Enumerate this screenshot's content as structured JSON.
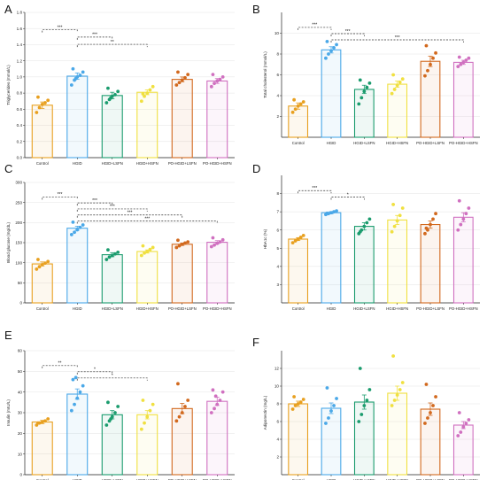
{
  "figure": {
    "panels": [
      "A",
      "B",
      "C",
      "D",
      "E",
      "F"
    ]
  },
  "chart_data": [
    {
      "panel": "A",
      "type": "bar",
      "ylabel": "Triglycerides (mmol/L)",
      "ylim": [
        0,
        1.8
      ],
      "yticks": [
        0.0,
        0.2,
        0.4,
        0.6,
        0.8,
        1.0,
        1.2,
        1.4,
        1.6,
        1.8
      ],
      "tick_decimals": 1,
      "categories": [
        "Control",
        "HGID",
        "HGID+LSFN",
        "HGID+HSFN",
        "PO-HGID+LSFN",
        "PO-HGID+HSFN"
      ],
      "values": [
        0.65,
        1.01,
        0.77,
        0.81,
        0.97,
        0.95
      ],
      "errors": [
        0.04,
        0.04,
        0.04,
        0.03,
        0.03,
        0.03
      ],
      "points": [
        [
          0.56,
          0.62,
          0.66,
          0.68,
          0.71,
          0.75
        ],
        [
          0.9,
          0.96,
          1.0,
          1.02,
          1.06,
          1.1,
          0.98
        ],
        [
          0.68,
          0.72,
          0.76,
          0.78,
          0.82,
          0.86,
          0.74
        ],
        [
          0.7,
          0.76,
          0.8,
          0.84,
          0.88,
          0.79
        ],
        [
          0.9,
          0.93,
          0.96,
          0.99,
          1.03,
          1.06
        ],
        [
          0.88,
          0.92,
          0.95,
          0.97,
          1.0,
          1.03
        ]
      ],
      "significance": [
        {
          "from": 0,
          "to": 1,
          "label": "***"
        },
        {
          "from": 1,
          "to": 2,
          "label": "***"
        },
        {
          "from": 1,
          "to": 3,
          "label": "**"
        }
      ]
    },
    {
      "panel": "B",
      "type": "bar",
      "ylabel": "Total cholesterol (mmol/L)",
      "ylim": [
        0,
        12
      ],
      "yticks": [
        2,
        4,
        6,
        8,
        10
      ],
      "tick_decimals": 0,
      "categories": [
        "Control",
        "HGID",
        "HGID+LSFN",
        "HGID+HSFN",
        "PO-HGID+LSFN",
        "PO-HGID+HSFN"
      ],
      "values": [
        3.0,
        8.4,
        4.6,
        5.1,
        7.3,
        7.2
      ],
      "errors": [
        0.3,
        0.3,
        0.4,
        0.3,
        0.5,
        0.2
      ],
      "points": [
        [
          2.4,
          2.7,
          3.0,
          3.2,
          3.4,
          3.6
        ],
        [
          7.6,
          8.0,
          8.3,
          8.6,
          8.9,
          9.2
        ],
        [
          3.2,
          3.8,
          4.4,
          4.8,
          5.2,
          5.5
        ],
        [
          4.2,
          4.6,
          5.0,
          5.3,
          5.6,
          6.0
        ],
        [
          5.9,
          6.4,
          7.0,
          7.6,
          8.1,
          8.8
        ],
        [
          6.8,
          7.0,
          7.2,
          7.4,
          7.6,
          7.7
        ]
      ],
      "significance": [
        {
          "from": 0,
          "to": 1,
          "label": "***"
        },
        {
          "from": 1,
          "to": 2,
          "label": "***"
        },
        {
          "from": 1,
          "to": 5,
          "label": "***"
        }
      ]
    },
    {
      "panel": "C",
      "type": "bar",
      "ylabel": "Blood glucose (mg/dL)",
      "ylim": [
        0,
        300
      ],
      "yticks": [
        0,
        50,
        100,
        150,
        200,
        250,
        300
      ],
      "tick_decimals": 0,
      "categories": [
        "Control",
        "HGID",
        "HGID+LSFN",
        "HGID+HSFN",
        "PO-HGID+LSFN",
        "PO-HGID+HSFN"
      ],
      "values": [
        97,
        186,
        120,
        128,
        146,
        151
      ],
      "errors": [
        5,
        5,
        5,
        4,
        3,
        4
      ],
      "points": [
        [
          84,
          90,
          95,
          99,
          103,
          108
        ],
        [
          170,
          176,
          182,
          188,
          194,
          201
        ],
        [
          108,
          114,
          118,
          122,
          126,
          132
        ],
        [
          118,
          124,
          128,
          133,
          138,
          142
        ],
        [
          138,
          142,
          146,
          149,
          152,
          156
        ],
        [
          140,
          144,
          148,
          152,
          157,
          162
        ]
      ],
      "significance": [
        {
          "from": 0,
          "to": 1,
          "label": "***"
        },
        {
          "from": 1,
          "to": 2,
          "label": "***"
        },
        {
          "from": 1,
          "to": 3,
          "label": "***"
        },
        {
          "from": 1,
          "to": 4,
          "label": "***"
        },
        {
          "from": 1,
          "to": 5,
          "label": "***"
        }
      ]
    },
    {
      "panel": "D",
      "type": "bar",
      "ylabel": "HbA1c (%)",
      "ylim": [
        2,
        9
      ],
      "yticks": [
        3,
        4,
        5,
        6,
        7,
        8
      ],
      "tick_decimals": 0,
      "categories": [
        "Control",
        "HGID",
        "HGID+LSFN",
        "HGID+HSFN",
        "PO-HGID+LSFN",
        "PO-HGID+HSFN"
      ],
      "values": [
        5.5,
        6.95,
        6.2,
        6.55,
        6.3,
        6.7
      ],
      "errors": [
        0.08,
        0.06,
        0.2,
        0.25,
        0.2,
        0.25
      ],
      "points": [
        [
          5.3,
          5.4,
          5.5,
          5.6,
          5.7
        ],
        [
          6.85,
          6.9,
          6.95,
          7.0,
          7.05,
          6.92
        ],
        [
          5.8,
          6.0,
          6.2,
          6.4,
          6.6,
          5.9
        ],
        [
          5.9,
          6.2,
          6.5,
          6.8,
          7.2,
          7.4
        ],
        [
          5.8,
          6.0,
          6.3,
          6.6,
          6.9,
          6.1
        ],
        [
          6.0,
          6.3,
          6.6,
          6.9,
          7.2,
          7.6
        ]
      ],
      "significance": [
        {
          "from": 0,
          "to": 1,
          "label": "***"
        },
        {
          "from": 1,
          "to": 2,
          "label": "*"
        }
      ]
    },
    {
      "panel": "E",
      "type": "bar",
      "ylabel": "Insulin (mIU/L)",
      "ylim": [
        0,
        60
      ],
      "yticks": [
        0,
        10,
        20,
        30,
        40,
        50,
        60
      ],
      "tick_decimals": 0,
      "categories": [
        "Control",
        "HGID",
        "HGID+LSFN",
        "HGID+HSFN",
        "PO-HGID+LSFN",
        "PO-HGID+HSFN"
      ],
      "values": [
        25.5,
        39,
        29,
        29,
        32,
        35.5
      ],
      "errors": [
        0.8,
        2.5,
        2,
        2,
        2.5,
        2
      ],
      "points": [
        [
          24,
          25,
          25.5,
          26,
          27,
          25
        ],
        [
          31,
          34,
          37,
          40,
          43,
          46,
          47
        ],
        [
          24,
          26,
          28,
          30,
          33,
          35,
          27
        ],
        [
          22,
          25,
          28,
          31,
          34,
          36
        ],
        [
          26,
          28,
          30,
          33,
          36,
          44
        ],
        [
          30,
          32,
          34,
          36,
          40,
          41,
          38
        ]
      ],
      "significance": [
        {
          "from": 0,
          "to": 1,
          "label": "**"
        },
        {
          "from": 1,
          "to": 2,
          "label": "*"
        },
        {
          "from": 1,
          "to": 3,
          "label": "*"
        }
      ]
    },
    {
      "panel": "F",
      "type": "bar",
      "ylabel": "Adiponectin (mg/L)",
      "ylim": [
        0,
        14
      ],
      "yticks": [
        2,
        4,
        6,
        8,
        10,
        12
      ],
      "tick_decimals": 0,
      "categories": [
        "Control",
        "HGID",
        "HGID+LSFN",
        "HGID+HSFN",
        "PO-HGID+LSFN",
        "PO-HGID+HSFN"
      ],
      "values": [
        8.0,
        7.5,
        8.2,
        9.2,
        7.4,
        5.6
      ],
      "errors": [
        0.3,
        0.6,
        0.8,
        0.8,
        0.7,
        0.4
      ],
      "points": [
        [
          7.4,
          7.8,
          8.0,
          8.2,
          8.5,
          8.8
        ],
        [
          5.8,
          6.4,
          7.2,
          7.8,
          8.6,
          9.8
        ],
        [
          6.0,
          6.8,
          7.8,
          8.4,
          9.6,
          12.0
        ],
        [
          7.8,
          8.4,
          9.0,
          9.6,
          10.4,
          13.4
        ],
        [
          5.8,
          6.4,
          7.0,
          7.8,
          8.8,
          10.2
        ],
        [
          4.4,
          4.8,
          5.4,
          5.8,
          6.2,
          7.0
        ]
      ],
      "significance": []
    }
  ],
  "colors": {
    "groups": [
      "#e8a020",
      "#4aa8e8",
      "#1b9c6e",
      "#f0e040",
      "#d2691e",
      "#d070c0"
    ],
    "axis": "#222222",
    "grid": "#dcdcdc",
    "bracket": "#333333"
  }
}
